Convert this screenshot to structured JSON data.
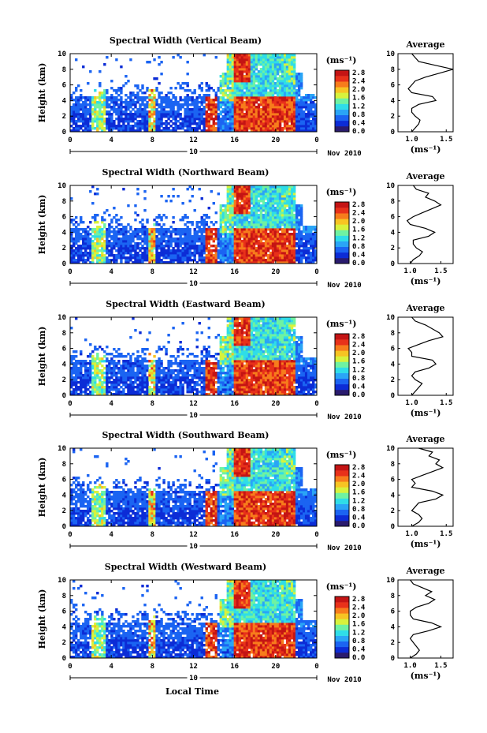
{
  "figure": {
    "xlabel": "Local Time",
    "date_label": "Nov 2010",
    "day_label": "10",
    "ylabel": "Height (km)",
    "cb_unit": "(ms⁻¹)",
    "avg_title": "Average",
    "avg_unit": "(ms⁻¹)"
  },
  "colors": {
    "jet": [
      "#2a1b6e",
      "#0c2cd6",
      "#1b64f2",
      "#2aa5f6",
      "#2fdde8",
      "#6ff2a2",
      "#d8f23c",
      "#f7c423",
      "#f77c1c",
      "#e8311a",
      "#c41414"
    ]
  },
  "chart_data": [
    {
      "type": "heatmap",
      "title": "Spectral Width (Vertical Beam)",
      "x_ticks": [
        "0",
        "4",
        "8",
        "12",
        "16",
        "20",
        "0"
      ],
      "y_ticks": [
        "0",
        "2",
        "4",
        "6",
        "8",
        "10"
      ],
      "xlim": [
        0,
        24
      ],
      "ylim": [
        0,
        10
      ],
      "colorbar": {
        "ticks": [
          "0.0",
          "0.4",
          "0.8",
          "1.2",
          "1.6",
          "2.0",
          "2.4",
          "2.8"
        ],
        "range": [
          0,
          3
        ]
      },
      "average": {
        "xlim": [
          0.8,
          1.6
        ],
        "x_ticks": [
          "1.0",
          "1.5"
        ],
        "y_ticks": [
          "0",
          "2",
          "4",
          "6",
          "8",
          "10"
        ],
        "height": [
          0,
          0.5,
          1,
          1.5,
          2,
          2.5,
          3,
          3.5,
          4,
          4.5,
          5,
          5.5,
          6,
          6.5,
          7,
          7.5,
          8,
          8.5,
          9,
          9.5,
          10
        ],
        "width": [
          1.0,
          1.05,
          1.1,
          1.12,
          1.05,
          1.0,
          1.0,
          1.1,
          1.35,
          1.3,
          1.0,
          0.95,
          1.0,
          1.05,
          1.2,
          1.4,
          1.6,
          1.35,
          1.1,
          1.05,
          1.0
        ]
      }
    },
    {
      "type": "heatmap",
      "title": "Spectral Width (Northward Beam)",
      "x_ticks": [
        "0",
        "4",
        "8",
        "12",
        "16",
        "20",
        "0"
      ],
      "y_ticks": [
        "0",
        "2",
        "4",
        "6",
        "8",
        "10"
      ],
      "xlim": [
        0,
        24
      ],
      "ylim": [
        0,
        10
      ],
      "colorbar": {
        "ticks": [
          "0.0",
          "0.4",
          "0.8",
          "1.2",
          "1.6",
          "2.0",
          "2.4",
          "2.8"
        ],
        "range": [
          0,
          3
        ]
      },
      "average": {
        "xlim": [
          0.8,
          1.7
        ],
        "x_ticks": [
          "1.0",
          "1.5"
        ],
        "y_ticks": [
          "0",
          "2",
          "4",
          "6",
          "8",
          "10"
        ],
        "height": [
          0,
          0.5,
          1,
          1.5,
          2,
          2.5,
          3,
          3.5,
          4,
          4.5,
          5,
          5.5,
          6,
          6.5,
          7,
          7.5,
          8,
          8.5,
          9,
          9.5,
          10
        ],
        "width": [
          1.0,
          1.05,
          1.15,
          1.2,
          1.1,
          1.05,
          1.05,
          1.3,
          1.4,
          1.25,
          1.0,
          0.95,
          1.05,
          1.2,
          1.35,
          1.5,
          1.4,
          1.25,
          1.3,
          1.1,
          1.05
        ]
      }
    },
    {
      "type": "heatmap",
      "title": "Spectral Width (Eastward Beam)",
      "x_ticks": [
        "0",
        "4",
        "8",
        "12",
        "16",
        "20",
        "0"
      ],
      "y_ticks": [
        "0",
        "2",
        "4",
        "6",
        "8",
        "10"
      ],
      "xlim": [
        0,
        24
      ],
      "ylim": [
        0,
        10
      ],
      "colorbar": {
        "ticks": [
          "0.0",
          "0.4",
          "0.8",
          "1.2",
          "1.6",
          "2.0",
          "2.4",
          "2.8"
        ],
        "range": [
          0,
          3
        ]
      },
      "average": {
        "xlim": [
          0.8,
          1.6
        ],
        "x_ticks": [
          "1.0",
          "1.5"
        ],
        "y_ticks": [
          "0",
          "2",
          "4",
          "6",
          "8",
          "10"
        ],
        "height": [
          0,
          0.5,
          1,
          1.5,
          2,
          2.5,
          3,
          3.5,
          4,
          4.5,
          5,
          5.5,
          6,
          6.5,
          7,
          7.5,
          8,
          8.5,
          9,
          9.5,
          10
        ],
        "width": [
          1.0,
          1.05,
          1.1,
          1.15,
          1.05,
          1.0,
          1.05,
          1.25,
          1.35,
          1.3,
          1.0,
          1.0,
          0.95,
          1.1,
          1.25,
          1.45,
          1.4,
          1.3,
          1.2,
          1.05,
          1.0
        ]
      }
    },
    {
      "type": "heatmap",
      "title": "Spectral Width (Southward Beam)",
      "x_ticks": [
        "0",
        "4",
        "8",
        "12",
        "16",
        "20",
        "0"
      ],
      "y_ticks": [
        "0",
        "2",
        "4",
        "6",
        "8",
        "10"
      ],
      "xlim": [
        0,
        24
      ],
      "ylim": [
        0,
        10
      ],
      "colorbar": {
        "ticks": [
          "0.0",
          "0.4",
          "0.8",
          "1.2",
          "1.6",
          "2.0",
          "2.4",
          "2.8"
        ],
        "range": [
          0,
          3
        ]
      },
      "average": {
        "xlim": [
          0.8,
          1.6
        ],
        "x_ticks": [
          "1.0",
          "1.5"
        ],
        "y_ticks": [
          "0",
          "2",
          "4",
          "6",
          "8",
          "10"
        ],
        "height": [
          0,
          0.5,
          1,
          1.5,
          2,
          2.5,
          3,
          3.5,
          4,
          4.5,
          5,
          5.5,
          6,
          6.5,
          7,
          7.5,
          8,
          8.5,
          9,
          9.5,
          10
        ],
        "width": [
          1.0,
          1.1,
          1.15,
          1.1,
          1.0,
          1.05,
          1.1,
          1.35,
          1.45,
          1.3,
          1.0,
          1.05,
          1.0,
          1.15,
          1.3,
          1.45,
          1.35,
          1.4,
          1.25,
          1.3,
          1.1
        ]
      }
    },
    {
      "type": "heatmap",
      "title": "Spectral Width (Westward Beam)",
      "x_ticks": [
        "0",
        "4",
        "8",
        "12",
        "16",
        "20",
        "0"
      ],
      "y_ticks": [
        "0",
        "2",
        "4",
        "6",
        "8",
        "10"
      ],
      "xlim": [
        0,
        24
      ],
      "ylim": [
        0,
        10
      ],
      "colorbar": {
        "ticks": [
          "0.0",
          "0.4",
          "0.8",
          "1.2",
          "1.6",
          "2.0",
          "2.4",
          "2.8"
        ],
        "range": [
          0,
          3
        ]
      },
      "average": {
        "xlim": [
          0.8,
          1.7
        ],
        "x_ticks": [
          "1.0",
          "1.5"
        ],
        "y_ticks": [
          "0",
          "2",
          "4",
          "6",
          "8",
          "10"
        ],
        "height": [
          0,
          0.5,
          1,
          1.5,
          2,
          2.5,
          3,
          3.5,
          4,
          4.5,
          5,
          5.5,
          6,
          6.5,
          7,
          7.5,
          8,
          8.5,
          9,
          9.5,
          10
        ],
        "width": [
          1.0,
          1.1,
          1.15,
          1.1,
          1.05,
          1.0,
          1.05,
          1.3,
          1.5,
          1.35,
          1.05,
          1.0,
          1.0,
          1.1,
          1.3,
          1.4,
          1.25,
          1.35,
          1.2,
          1.05,
          1.0
        ]
      }
    }
  ]
}
